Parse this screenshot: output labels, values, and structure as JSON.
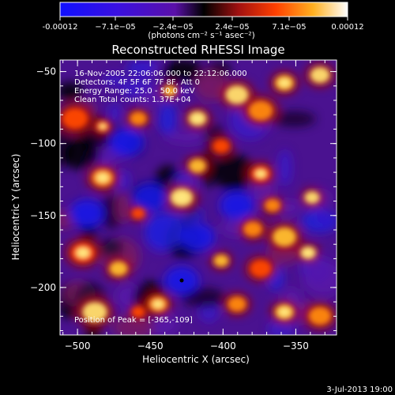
{
  "colorbar": {
    "ticks": [
      "-0.00012",
      "−7.1e−05",
      "−2.4e−05",
      "2.4e−05",
      "7.1e−05",
      "0.00012"
    ],
    "units": "(photons cm⁻² s⁻¹ asec⁻²)",
    "colors": [
      "#1010ff",
      "#5a10a8",
      "#000000",
      "#a01010",
      "#ff6a00",
      "#ffd040",
      "#ffffff"
    ]
  },
  "image": {
    "title": "Reconstructed RHESSI Image",
    "xlabel": "Heliocentric X (arcsec)",
    "ylabel": "Heliocentric Y (arcsec)",
    "xticks": [
      "−500",
      "−450",
      "−400",
      "−350"
    ],
    "xtick_values": [
      -500,
      -450,
      -400,
      -350
    ],
    "yticks": [
      "−50",
      "−100",
      "−150",
      "−200"
    ],
    "ytick_values": [
      -50,
      -100,
      -150,
      -200
    ],
    "xlim": [
      -512,
      -322
    ],
    "ylim": [
      -233,
      -42
    ],
    "annotations": [
      "16-Nov-2005 22:06:06.000 to 22:12:06.000",
      "Detectors: 4F 5F 6F 7F 8F, Att 0",
      "Energy Range: 25.0 - 50.0 keV",
      "Clean    Total counts: 1.37E+04"
    ],
    "peak_label": "Position of Peak = [-365,-109]"
  },
  "footer": {
    "timestamp": "3-Jul-2013 19:00"
  }
}
